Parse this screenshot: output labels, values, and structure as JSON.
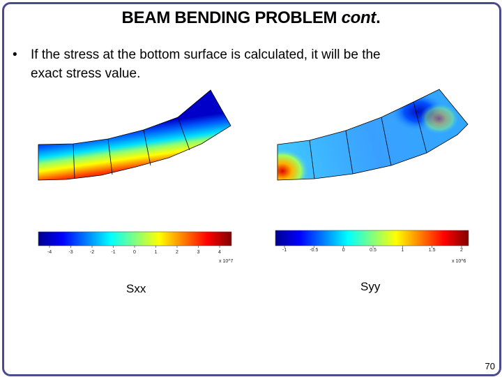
{
  "slide": {
    "title_main": "BEAM BENDING PROBLEM",
    "title_italic": "cont",
    "title_dot": ".",
    "bullet_symbol": "•",
    "bullet_line1": "If the stress at the bottom surface is calculated, it will be the",
    "bullet_line2": "exact stress value.",
    "page_number": "70"
  },
  "figures": {
    "left": {
      "caption": "Sxx",
      "ticks": [
        "-4",
        "-3",
        "-2",
        "-1",
        "0",
        "1",
        "2",
        "3",
        "4"
      ],
      "exponent": "x 10^7"
    },
    "right": {
      "caption": "Syy",
      "ticks": [
        "-1",
        "-0.5",
        "0",
        "0.5",
        "1",
        "1.5",
        "2"
      ],
      "exponent": "x 10^6"
    }
  },
  "colors": {
    "frame": "#4a4a8e",
    "jet_blue": "#00008f",
    "jet_red": "#800000"
  }
}
